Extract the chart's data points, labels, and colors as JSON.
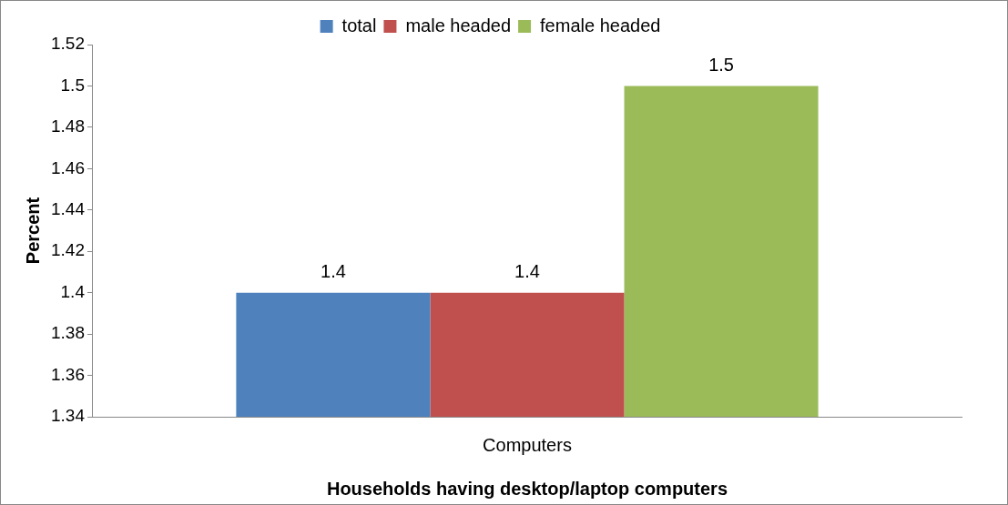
{
  "chart_data": {
    "type": "bar",
    "xlabel": "Households having desktop/laptop computers",
    "ylabel": "Percent",
    "categories": [
      "Computers"
    ],
    "series": [
      {
        "name": "total",
        "color": "#4f81bd",
        "values": [
          1.4
        ]
      },
      {
        "name": "male headed",
        "color": "#c0504d",
        "values": [
          1.4
        ]
      },
      {
        "name": "female headed",
        "color": "#9bbb59",
        "values": [
          1.5
        ]
      }
    ],
    "ylim": [
      1.34,
      1.52
    ],
    "yticks": [
      1.34,
      1.36,
      1.38,
      1.4,
      1.42,
      1.44,
      1.46,
      1.48,
      1.5,
      1.52
    ],
    "grid": false,
    "legend": "top",
    "data_labels": true
  }
}
